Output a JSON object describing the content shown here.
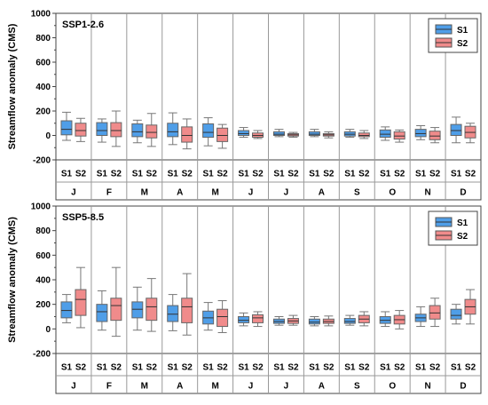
{
  "chart_data": [
    {
      "type": "box",
      "title": "SSP1-2.6",
      "ylabel": "Streamflow anomaly (CMS)",
      "ylim": [
        -200,
        1000
      ],
      "yticks": [
        -200,
        0,
        200,
        400,
        600,
        800,
        1000
      ],
      "months": [
        "J",
        "F",
        "M",
        "A",
        "M",
        "J",
        "J",
        "A",
        "S",
        "O",
        "N",
        "D"
      ],
      "scenarios": [
        "S1",
        "S2"
      ],
      "legend": {
        "position": "top-right",
        "entries": [
          "S1",
          "S2"
        ]
      },
      "colors": {
        "S1": "#4f9ee8",
        "S2": "#f08b8b"
      },
      "series": [
        {
          "name": "S1",
          "boxes": [
            {
              "min": -40,
              "q1": 5,
              "median": 50,
              "q3": 120,
              "max": 190
            },
            {
              "min": -55,
              "q1": 0,
              "median": 40,
              "q3": 105,
              "max": 135
            },
            {
              "min": -60,
              "q1": -10,
              "median": 30,
              "q3": 95,
              "max": 125
            },
            {
              "min": -75,
              "q1": -10,
              "median": 30,
              "q3": 100,
              "max": 185
            },
            {
              "min": -85,
              "q1": -15,
              "median": 25,
              "q3": 95,
              "max": 145
            },
            {
              "min": -15,
              "q1": 0,
              "median": 15,
              "q3": 40,
              "max": 65
            },
            {
              "min": -10,
              "q1": 0,
              "median": 10,
              "q3": 30,
              "max": 50
            },
            {
              "min": -10,
              "q1": 0,
              "median": 10,
              "q3": 30,
              "max": 50
            },
            {
              "min": -15,
              "q1": -5,
              "median": 10,
              "q3": 30,
              "max": 50
            },
            {
              "min": -40,
              "q1": -15,
              "median": 10,
              "q3": 45,
              "max": 70
            },
            {
              "min": -35,
              "q1": -10,
              "median": 15,
              "q3": 50,
              "max": 80
            },
            {
              "min": -60,
              "q1": 0,
              "median": 40,
              "q3": 90,
              "max": 150
            }
          ]
        },
        {
          "name": "S2",
          "boxes": [
            {
              "min": -50,
              "q1": -5,
              "median": 40,
              "q3": 100,
              "max": 140
            },
            {
              "min": -90,
              "q1": -10,
              "median": 40,
              "q3": 105,
              "max": 200
            },
            {
              "min": -90,
              "q1": -20,
              "median": 25,
              "q3": 85,
              "max": 180
            },
            {
              "min": -110,
              "q1": -55,
              "median": 0,
              "q3": 70,
              "max": 135
            },
            {
              "min": -105,
              "q1": -50,
              "median": 0,
              "q3": 60,
              "max": 90
            },
            {
              "min": -25,
              "q1": -15,
              "median": 0,
              "q3": 20,
              "max": 40
            },
            {
              "min": -15,
              "q1": -5,
              "median": 5,
              "q3": 15,
              "max": 25
            },
            {
              "min": -20,
              "q1": -5,
              "median": 5,
              "q3": 15,
              "max": 30
            },
            {
              "min": -25,
              "q1": -10,
              "median": 0,
              "q3": 20,
              "max": 40
            },
            {
              "min": -55,
              "q1": -30,
              "median": -5,
              "q3": 30,
              "max": 45
            },
            {
              "min": -60,
              "q1": -35,
              "median": -5,
              "q3": 35,
              "max": 65
            },
            {
              "min": -60,
              "q1": -20,
              "median": 25,
              "q3": 75,
              "max": 100
            }
          ]
        }
      ]
    },
    {
      "type": "box",
      "title": "SSP5-8.5",
      "ylabel": "Streamflow anomaly (CMS)",
      "ylim": [
        -200,
        1000
      ],
      "yticks": [
        -200,
        0,
        200,
        400,
        600,
        800,
        1000
      ],
      "months": [
        "J",
        "F",
        "M",
        "A",
        "M",
        "J",
        "J",
        "A",
        "S",
        "O",
        "N",
        "D"
      ],
      "scenarios": [
        "S1",
        "S2"
      ],
      "legend": {
        "position": "top-right",
        "entries": [
          "S1",
          "S2"
        ]
      },
      "colors": {
        "S1": "#4f9ee8",
        "S2": "#f08b8b"
      },
      "series": [
        {
          "name": "S1",
          "boxes": [
            {
              "min": 50,
              "q1": 90,
              "median": 150,
              "q3": 220,
              "max": 280
            },
            {
              "min": -10,
              "q1": 60,
              "median": 140,
              "q3": 200,
              "max": 310
            },
            {
              "min": -10,
              "q1": 90,
              "median": 160,
              "q3": 220,
              "max": 340
            },
            {
              "min": -15,
              "q1": 60,
              "median": 120,
              "q3": 190,
              "max": 280
            },
            {
              "min": -10,
              "q1": 40,
              "median": 90,
              "q3": 145,
              "max": 215
            },
            {
              "min": 25,
              "q1": 50,
              "median": 70,
              "q3": 100,
              "max": 130
            },
            {
              "min": 30,
              "q1": 45,
              "median": 60,
              "q3": 80,
              "max": 100
            },
            {
              "min": 25,
              "q1": 40,
              "median": 55,
              "q3": 80,
              "max": 100
            },
            {
              "min": 30,
              "q1": 45,
              "median": 60,
              "q3": 85,
              "max": 110
            },
            {
              "min": 20,
              "q1": 45,
              "median": 70,
              "q3": 100,
              "max": 140
            },
            {
              "min": 20,
              "q1": 60,
              "median": 90,
              "q3": 120,
              "max": 180
            },
            {
              "min": 40,
              "q1": 80,
              "median": 110,
              "q3": 160,
              "max": 200
            }
          ]
        },
        {
          "name": "S2",
          "boxes": [
            {
              "min": 10,
              "q1": 110,
              "median": 240,
              "q3": 320,
              "max": 500
            },
            {
              "min": -60,
              "q1": 70,
              "median": 190,
              "q3": 250,
              "max": 500
            },
            {
              "min": -20,
              "q1": 70,
              "median": 180,
              "q3": 250,
              "max": 410
            },
            {
              "min": -50,
              "q1": 50,
              "median": 180,
              "q3": 250,
              "max": 450
            },
            {
              "min": -30,
              "q1": 20,
              "median": 100,
              "q3": 160,
              "max": 230
            },
            {
              "min": 20,
              "q1": 50,
              "median": 90,
              "q3": 115,
              "max": 140
            },
            {
              "min": 30,
              "q1": 45,
              "median": 65,
              "q3": 85,
              "max": 110
            },
            {
              "min": 25,
              "q1": 45,
              "median": 60,
              "q3": 80,
              "max": 105
            },
            {
              "min": 25,
              "q1": 50,
              "median": 80,
              "q3": 110,
              "max": 140
            },
            {
              "min": 0,
              "q1": 40,
              "median": 75,
              "q3": 110,
              "max": 150
            },
            {
              "min": 20,
              "q1": 80,
              "median": 130,
              "q3": 190,
              "max": 250
            },
            {
              "min": 40,
              "q1": 120,
              "median": 180,
              "q3": 240,
              "max": 320
            }
          ]
        }
      ]
    }
  ]
}
